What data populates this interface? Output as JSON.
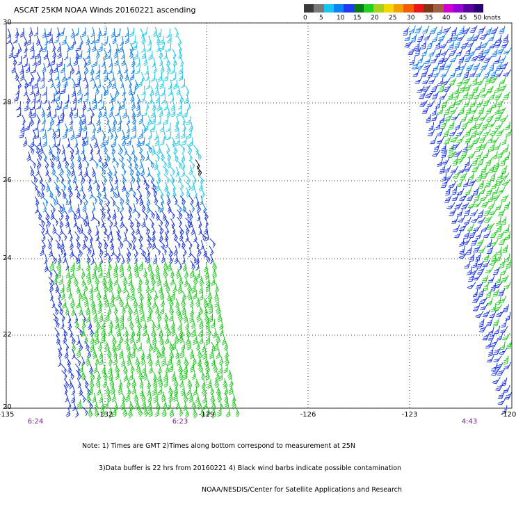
{
  "title": "ASCAT 25KM NOAA Winds 20160221 ascending",
  "colorbar": {
    "colors": [
      "#3a3a3a",
      "#7a7a7a",
      "#16c6ee",
      "#0a86ee",
      "#1e3bf0",
      "#0a7a18",
      "#22d01e",
      "#a8d01a",
      "#f0d800",
      "#f0a000",
      "#f06000",
      "#e81818",
      "#7a3818",
      "#a06040",
      "#d000d0",
      "#9800d8",
      "#5a00a0",
      "#2a0070"
    ],
    "labels": [
      "0",
      "5",
      "10",
      "15",
      "20",
      "25",
      "30",
      "35",
      "40",
      "45",
      "50 knots"
    ]
  },
  "map": {
    "lon_min": -135,
    "lon_max": -120,
    "lat_min": 20,
    "lat_max": 30,
    "lon_ticks": [
      "-135",
      "-132",
      "-129",
      "-126",
      "-123",
      "-120"
    ],
    "lat_ticks": [
      "30",
      "28",
      "26",
      "24",
      "22",
      "20"
    ],
    "swath_times": [
      "6:24",
      "6:23",
      "4:43"
    ],
    "barb_colors": {
      "dark_blue": "#1430e0",
      "blue": "#0a78e8",
      "cyan": "#18c8ec",
      "green": "#18c818",
      "black": "#000000"
    }
  },
  "notes": [
    "Note: 1) Times are GMT 2)Times along bottom correspond to measurement at 25N",
    "3)Data buffer is 22 hrs from 20160221 4) Black wind barbs indicate possible contamination",
    "NOAA/NESDIS/Center for Satellite Applications and Research"
  ]
}
